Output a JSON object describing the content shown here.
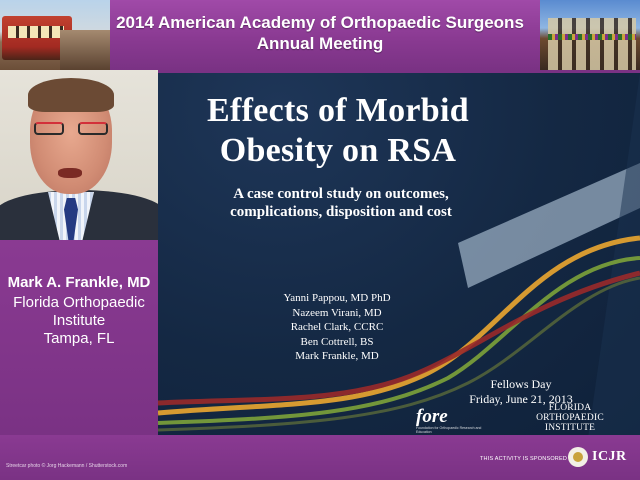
{
  "banner": {
    "title_line1": "2014 American Academy of Orthopaedic Surgeons",
    "title_line2": "Annual Meeting"
  },
  "speaker": {
    "name": "Mark A. Frankle, MD",
    "institution_line1": "Florida Orthopaedic",
    "institution_line2": "Institute",
    "location": "Tampa, FL"
  },
  "slide": {
    "title_line1": "Effects of Morbid",
    "title_line2": "Obesity on RSA",
    "subtitle_line1": "A case control study on outcomes,",
    "subtitle_line2": "complications, disposition and cost",
    "authors": [
      "Yanni Pappou, MD PhD",
      "Nazeem Virani, MD",
      "Rachel Clark, CCRC",
      "Ben Cottrell, BS",
      "Mark Frankle, MD"
    ],
    "event_name": "Fellows Day",
    "event_date": "Friday, June 21, 2013",
    "logo_fore": "fore",
    "logo_fore_tagline": "Foundation for Orthopaedic Research and Education",
    "logo_foi_line1": "FLORIDA",
    "logo_foi_line2": "ORTHOPAEDIC",
    "logo_foi_line3": "INSTITUTE",
    "colors": {
      "background": "#142843",
      "swoosh_orange": "#e0a030",
      "swoosh_green": "#7da33a",
      "swoosh_red": "#9a2a2a",
      "swoosh_light": "#c8dcef"
    }
  },
  "footer": {
    "credit": "Streetcar photo © Jorg Hackemann / Shutterstock.com",
    "sponsor_text": "THIS ACTIVITY IS SPONSORED BY",
    "sponsor_name": "ICJR"
  },
  "colors": {
    "frame_purple": "#7a3284",
    "banner_purple": "#a04aa8",
    "text": "#ffffff"
  }
}
